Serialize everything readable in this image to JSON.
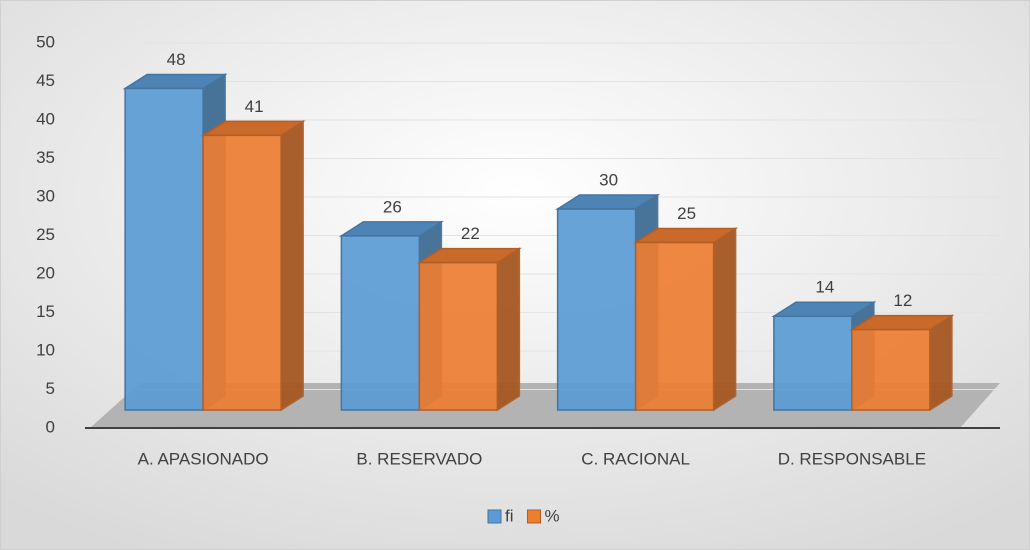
{
  "chart_data": {
    "type": "bar3d",
    "categories": [
      "A. APASIONADO",
      "B. RESERVADO",
      "C. RACIONAL",
      "D. RESPONSABLE"
    ],
    "series": [
      {
        "name": "fi",
        "color": "#5b9bd5",
        "values": [
          48,
          26,
          30,
          14
        ]
      },
      {
        "name": "%",
        "color": "#ed7d31",
        "values": [
          41,
          22,
          25,
          12
        ]
      }
    ],
    "ylim": [
      0,
      50
    ],
    "yticks": [
      0,
      5,
      10,
      15,
      20,
      25,
      30,
      35,
      40,
      45,
      50
    ],
    "grid": true,
    "legend": "bottom"
  }
}
